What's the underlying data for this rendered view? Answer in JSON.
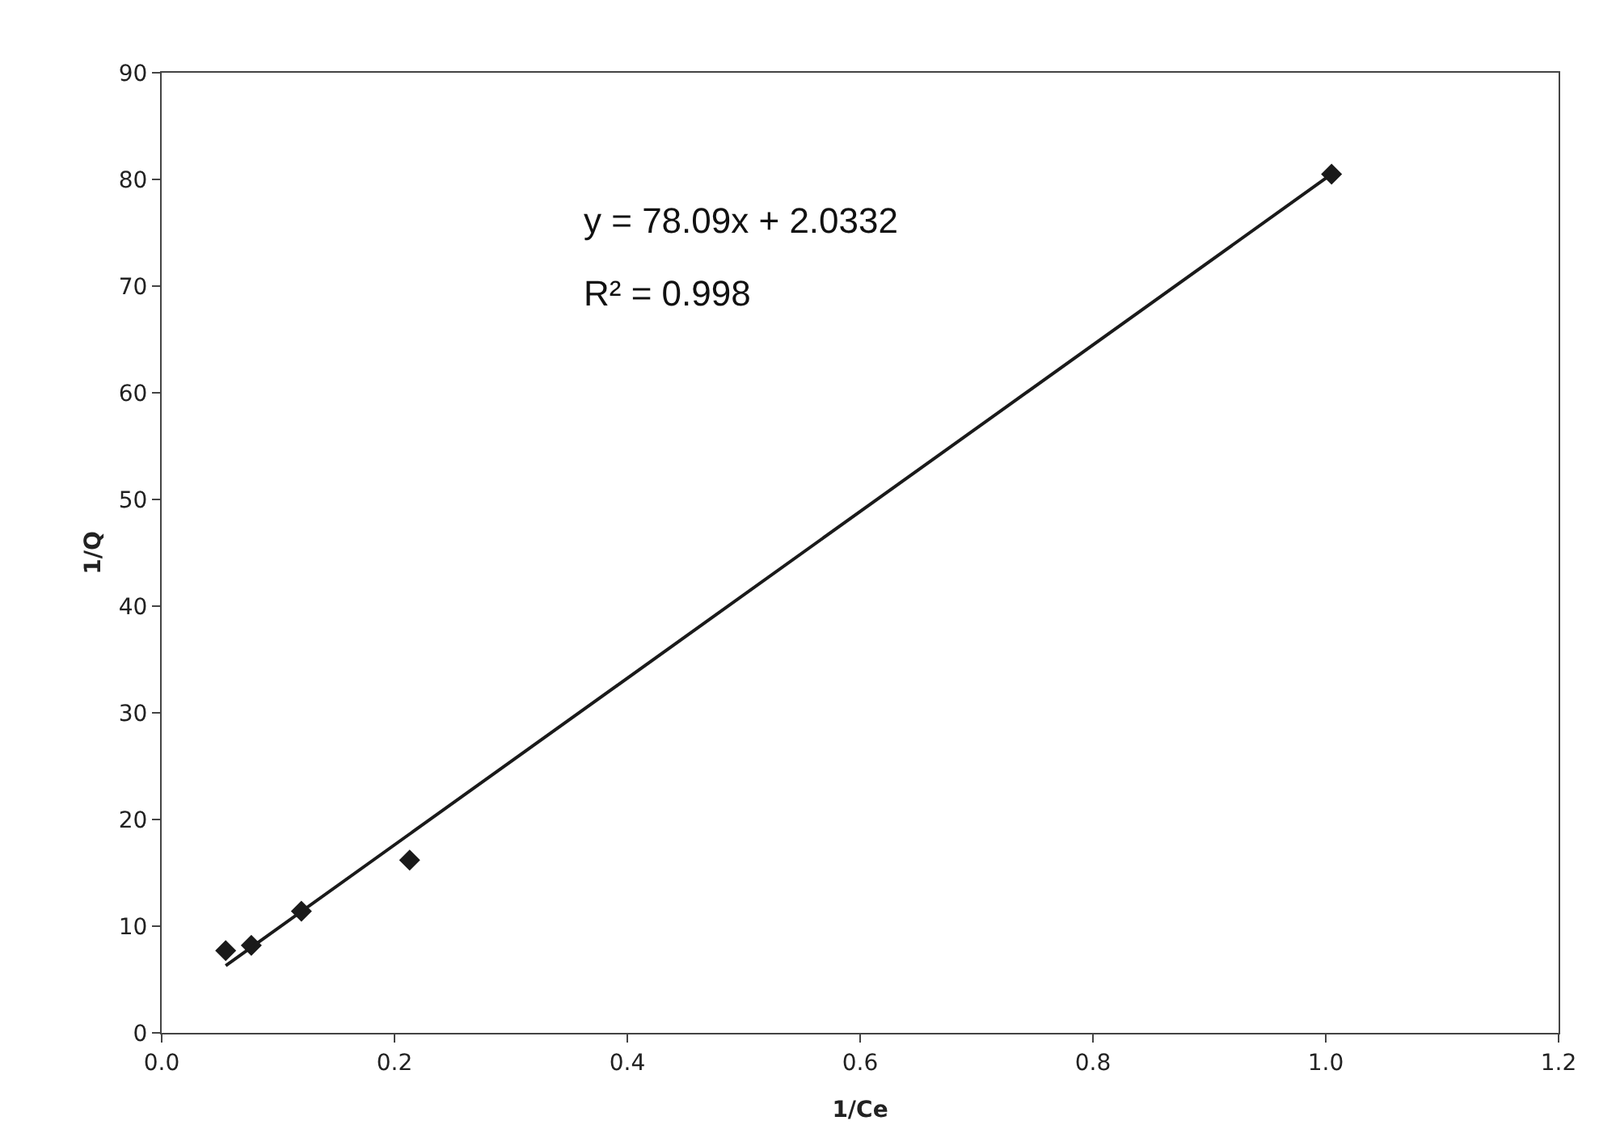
{
  "chart_data": {
    "type": "scatter",
    "xlabel": "1/Ce",
    "ylabel": "1/Q",
    "series": [
      {
        "color": "#1a1a1a",
        "marker": "diamond",
        "x": [
          0.055,
          0.077,
          0.12,
          0.213,
          1.005
        ],
        "values": [
          7.7,
          8.2,
          11.4,
          16.2,
          80.5
        ]
      },
      {
        "type": "line",
        "color": "#1a1a1a",
        "marker": "none",
        "line_style": "solid",
        "x": [
          0.055,
          1.005
        ],
        "values": [
          6.3,
          80.5
        ]
      }
    ],
    "annotations": [
      "y = 78.09x + 2.0332",
      "R² = 0.998"
    ],
    "xlim": [
      0,
      1.2
    ],
    "xticks": [
      {
        "value": 0,
        "label": "0.0"
      },
      {
        "value": 0.2,
        "label": "0.2"
      },
      {
        "value": 0.4,
        "label": "0.4"
      },
      {
        "value": 0.6,
        "label": "0.6"
      },
      {
        "value": 0.8,
        "label": "0.8"
      },
      {
        "value": 1,
        "label": "1.0"
      },
      {
        "value": 1.2,
        "label": "1.2"
      }
    ],
    "ylim": [
      0,
      90
    ],
    "yticks": [
      0,
      10,
      20,
      30,
      40,
      50,
      60,
      70,
      80,
      90
    ]
  }
}
